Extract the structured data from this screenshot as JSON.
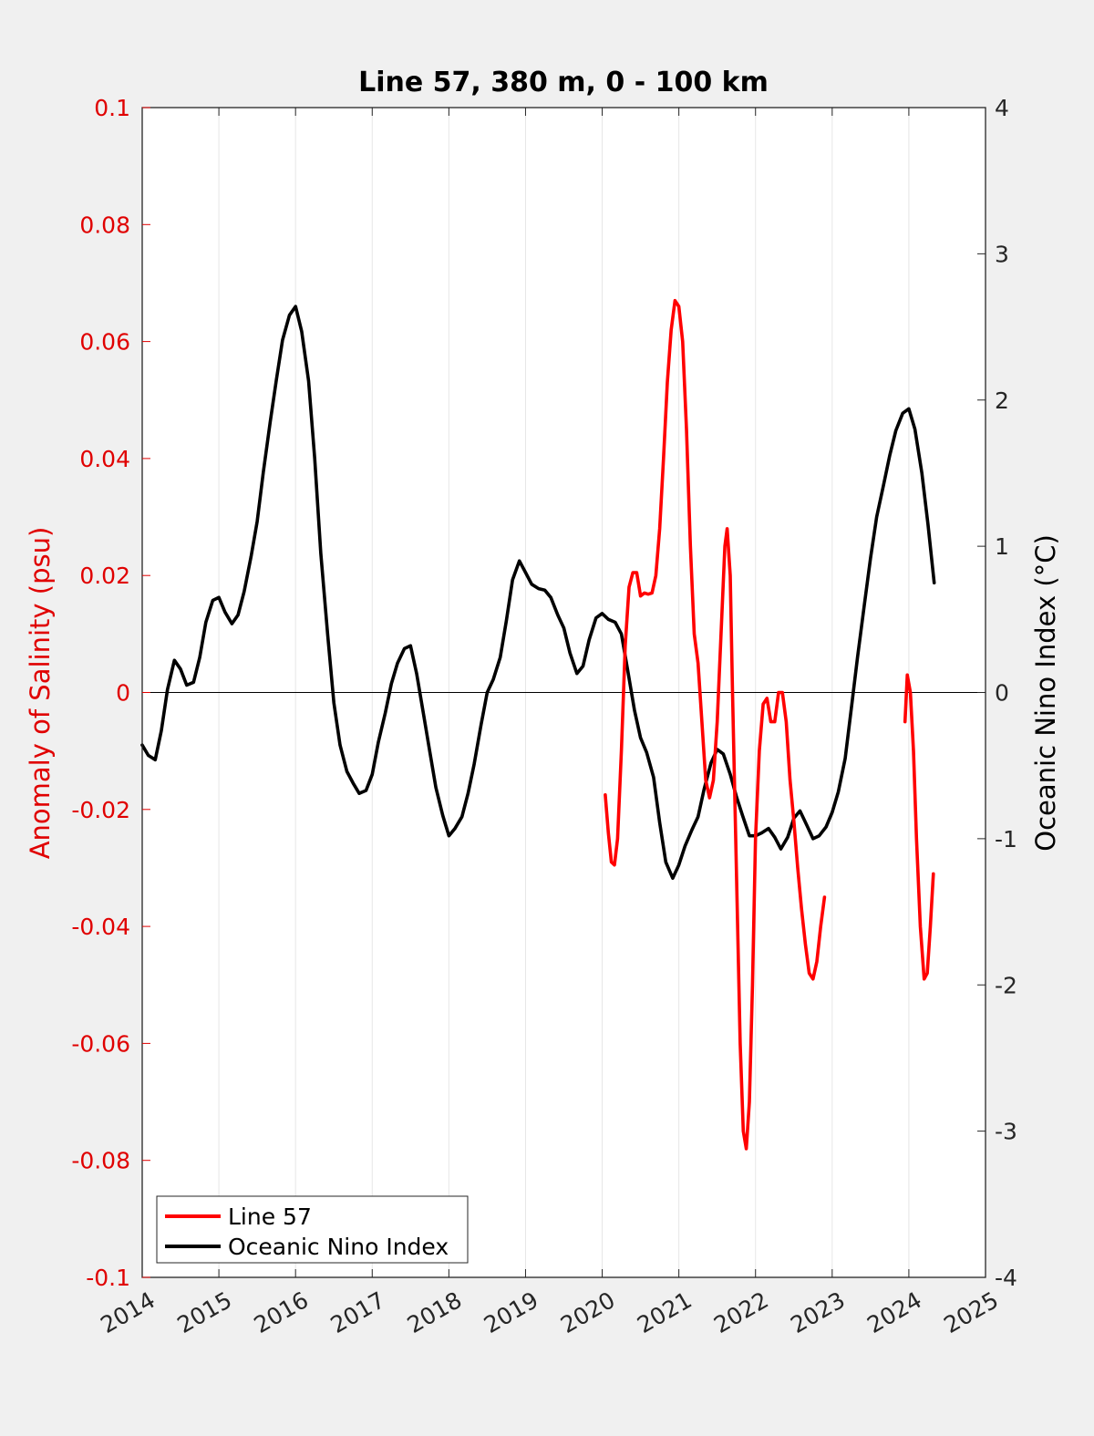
{
  "chart_data": {
    "type": "line",
    "title": "Line 57, 380 m, 0 - 100 km",
    "xlim": [
      2014,
      2025
    ],
    "x_ticks": [
      "2014",
      "2015",
      "2016",
      "2017",
      "2018",
      "2019",
      "2020",
      "2021",
      "2022",
      "2023",
      "2024",
      "2025"
    ],
    "grid": "vertical",
    "left_axis": {
      "label": "Anomaly of Salinity (psu)",
      "ylim": [
        -0.1,
        0.1
      ],
      "ticks": [
        "-0.1",
        "-0.08",
        "-0.06",
        "-0.04",
        "-0.02",
        "0",
        "0.02",
        "0.04",
        "0.06",
        "0.08",
        "0.1"
      ],
      "color": "#e00000"
    },
    "right_axis": {
      "label": "Oceanic Nino Index (°C)",
      "ylim": [
        -4,
        4
      ],
      "ticks": [
        "-4",
        "-3",
        "-2",
        "-1",
        "0",
        "1",
        "2",
        "3",
        "4"
      ],
      "color": "#000000"
    },
    "legend": {
      "placement": "bottom-left"
    },
    "series": [
      {
        "name": "Line 57",
        "axis": "left",
        "color": "#ff0000",
        "segments": [
          [
            [
              2020.04,
              -0.0175
            ],
            [
              2020.08,
              -0.024
            ],
            [
              2020.12,
              -0.029
            ],
            [
              2020.16,
              -0.0295
            ],
            [
              2020.2,
              -0.025
            ],
            [
              2020.25,
              -0.01
            ],
            [
              2020.3,
              0.008
            ],
            [
              2020.35,
              0.018
            ],
            [
              2020.4,
              0.0205
            ],
            [
              2020.45,
              0.0205
            ],
            [
              2020.5,
              0.0165
            ],
            [
              2020.55,
              0.017
            ],
            [
              2020.6,
              0.0168
            ],
            [
              2020.65,
              0.017
            ],
            [
              2020.7,
              0.02
            ],
            [
              2020.75,
              0.028
            ],
            [
              2020.8,
              0.04
            ],
            [
              2020.85,
              0.053
            ],
            [
              2020.9,
              0.062
            ],
            [
              2020.95,
              0.067
            ],
            [
              2021.0,
              0.066
            ],
            [
              2021.05,
              0.06
            ],
            [
              2021.1,
              0.045
            ],
            [
              2021.15,
              0.025
            ],
            [
              2021.2,
              0.01
            ],
            [
              2021.25,
              0.005
            ],
            [
              2021.3,
              -0.005
            ],
            [
              2021.35,
              -0.015
            ],
            [
              2021.4,
              -0.018
            ],
            [
              2021.45,
              -0.015
            ],
            [
              2021.5,
              -0.005
            ],
            [
              2021.55,
              0.01
            ],
            [
              2021.6,
              0.025
            ],
            [
              2021.63,
              0.028
            ],
            [
              2021.67,
              0.02
            ],
            [
              2021.7,
              0.0
            ],
            [
              2021.75,
              -0.03
            ],
            [
              2021.8,
              -0.06
            ],
            [
              2021.84,
              -0.075
            ],
            [
              2021.88,
              -0.078
            ],
            [
              2021.92,
              -0.07
            ],
            [
              2021.96,
              -0.05
            ],
            [
              2022.0,
              -0.025
            ],
            [
              2022.05,
              -0.01
            ],
            [
              2022.1,
              -0.002
            ],
            [
              2022.15,
              -0.001
            ],
            [
              2022.2,
              -0.005
            ],
            [
              2022.25,
              -0.005
            ],
            [
              2022.3,
              0.0
            ],
            [
              2022.35,
              0.0
            ],
            [
              2022.4,
              -0.005
            ],
            [
              2022.45,
              -0.015
            ],
            [
              2022.5,
              -0.022
            ],
            [
              2022.55,
              -0.03
            ],
            [
              2022.6,
              -0.037
            ],
            [
              2022.65,
              -0.043
            ],
            [
              2022.7,
              -0.048
            ],
            [
              2022.75,
              -0.049
            ],
            [
              2022.8,
              -0.046
            ],
            [
              2022.85,
              -0.04
            ],
            [
              2022.9,
              -0.035
            ]
          ],
          [
            [
              2023.95,
              -0.005
            ],
            [
              2023.98,
              0.003
            ],
            [
              2024.02,
              0.0
            ],
            [
              2024.06,
              -0.01
            ],
            [
              2024.1,
              -0.025
            ],
            [
              2024.15,
              -0.04
            ],
            [
              2024.2,
              -0.049
            ],
            [
              2024.24,
              -0.048
            ],
            [
              2024.28,
              -0.04
            ],
            [
              2024.32,
              -0.031
            ]
          ]
        ]
      },
      {
        "name": "Oceanic Nino Index",
        "axis": "right",
        "color": "#000000",
        "segments": [
          [
            [
              2014.0,
              -0.36
            ],
            [
              2014.08,
              -0.43
            ],
            [
              2014.17,
              -0.46
            ],
            [
              2014.25,
              -0.26
            ],
            [
              2014.33,
              0.02
            ],
            [
              2014.42,
              0.22
            ],
            [
              2014.5,
              0.16
            ],
            [
              2014.58,
              0.05
            ],
            [
              2014.67,
              0.07
            ],
            [
              2014.75,
              0.24
            ],
            [
              2014.83,
              0.48
            ],
            [
              2014.92,
              0.63
            ],
            [
              2015.0,
              0.65
            ],
            [
              2015.08,
              0.55
            ],
            [
              2015.17,
              0.47
            ],
            [
              2015.25,
              0.53
            ],
            [
              2015.33,
              0.69
            ],
            [
              2015.42,
              0.93
            ],
            [
              2015.5,
              1.17
            ],
            [
              2015.58,
              1.51
            ],
            [
              2015.67,
              1.85
            ],
            [
              2015.75,
              2.14
            ],
            [
              2015.83,
              2.41
            ],
            [
              2015.92,
              2.58
            ],
            [
              2016.0,
              2.64
            ],
            [
              2016.08,
              2.47
            ],
            [
              2016.17,
              2.13
            ],
            [
              2016.25,
              1.6
            ],
            [
              2016.33,
              0.95
            ],
            [
              2016.42,
              0.39
            ],
            [
              2016.5,
              -0.07
            ],
            [
              2016.58,
              -0.36
            ],
            [
              2016.67,
              -0.54
            ],
            [
              2016.75,
              -0.62
            ],
            [
              2016.83,
              -0.69
            ],
            [
              2016.92,
              -0.67
            ],
            [
              2017.0,
              -0.56
            ],
            [
              2017.08,
              -0.34
            ],
            [
              2017.17,
              -0.14
            ],
            [
              2017.25,
              0.06
            ],
            [
              2017.33,
              0.2
            ],
            [
              2017.42,
              0.3
            ],
            [
              2017.5,
              0.32
            ],
            [
              2017.58,
              0.13
            ],
            [
              2017.67,
              -0.15
            ],
            [
              2017.75,
              -0.4
            ],
            [
              2017.83,
              -0.65
            ],
            [
              2017.92,
              -0.84
            ],
            [
              2018.0,
              -0.98
            ],
            [
              2018.08,
              -0.93
            ],
            [
              2018.17,
              -0.85
            ],
            [
              2018.25,
              -0.69
            ],
            [
              2018.33,
              -0.49
            ],
            [
              2018.42,
              -0.22
            ],
            [
              2018.5,
              0.0
            ],
            [
              2018.58,
              0.09
            ],
            [
              2018.67,
              0.24
            ],
            [
              2018.75,
              0.49
            ],
            [
              2018.83,
              0.77
            ],
            [
              2018.92,
              0.9
            ],
            [
              2019.0,
              0.82
            ],
            [
              2019.08,
              0.74
            ],
            [
              2019.17,
              0.71
            ],
            [
              2019.25,
              0.7
            ],
            [
              2019.33,
              0.65
            ],
            [
              2019.42,
              0.53
            ],
            [
              2019.5,
              0.44
            ],
            [
              2019.58,
              0.27
            ],
            [
              2019.67,
              0.13
            ],
            [
              2019.75,
              0.18
            ],
            [
              2019.83,
              0.36
            ],
            [
              2019.92,
              0.51
            ],
            [
              2020.0,
              0.54
            ],
            [
              2020.08,
              0.5
            ],
            [
              2020.17,
              0.48
            ],
            [
              2020.25,
              0.4
            ],
            [
              2020.33,
              0.16
            ],
            [
              2020.42,
              -0.12
            ],
            [
              2020.5,
              -0.31
            ],
            [
              2020.58,
              -0.41
            ],
            [
              2020.67,
              -0.58
            ],
            [
              2020.75,
              -0.89
            ],
            [
              2020.83,
              -1.16
            ],
            [
              2020.92,
              -1.27
            ],
            [
              2021.0,
              -1.18
            ],
            [
              2021.08,
              -1.05
            ],
            [
              2021.17,
              -0.94
            ],
            [
              2021.25,
              -0.85
            ],
            [
              2021.33,
              -0.66
            ],
            [
              2021.42,
              -0.48
            ],
            [
              2021.5,
              -0.39
            ],
            [
              2021.58,
              -0.42
            ],
            [
              2021.67,
              -0.56
            ],
            [
              2021.75,
              -0.71
            ],
            [
              2021.83,
              -0.84
            ],
            [
              2021.92,
              -0.98
            ],
            [
              2022.0,
              -0.98
            ],
            [
              2022.08,
              -0.96
            ],
            [
              2022.17,
              -0.93
            ],
            [
              2022.25,
              -0.99
            ],
            [
              2022.33,
              -1.07
            ],
            [
              2022.42,
              -0.99
            ],
            [
              2022.5,
              -0.86
            ],
            [
              2022.58,
              -0.81
            ],
            [
              2022.67,
              -0.91
            ],
            [
              2022.75,
              -1.0
            ],
            [
              2022.83,
              -0.98
            ],
            [
              2022.92,
              -0.92
            ],
            [
              2023.0,
              -0.82
            ],
            [
              2023.08,
              -0.68
            ],
            [
              2023.17,
              -0.45
            ],
            [
              2023.25,
              -0.11
            ],
            [
              2023.33,
              0.24
            ],
            [
              2023.42,
              0.6
            ],
            [
              2023.5,
              0.92
            ],
            [
              2023.58,
              1.2
            ],
            [
              2023.67,
              1.42
            ],
            [
              2023.75,
              1.62
            ],
            [
              2023.83,
              1.79
            ],
            [
              2023.92,
              1.91
            ],
            [
              2024.0,
              1.94
            ],
            [
              2024.08,
              1.8
            ],
            [
              2024.17,
              1.5
            ],
            [
              2024.25,
              1.15
            ],
            [
              2024.33,
              0.75
            ]
          ]
        ]
      }
    ]
  }
}
